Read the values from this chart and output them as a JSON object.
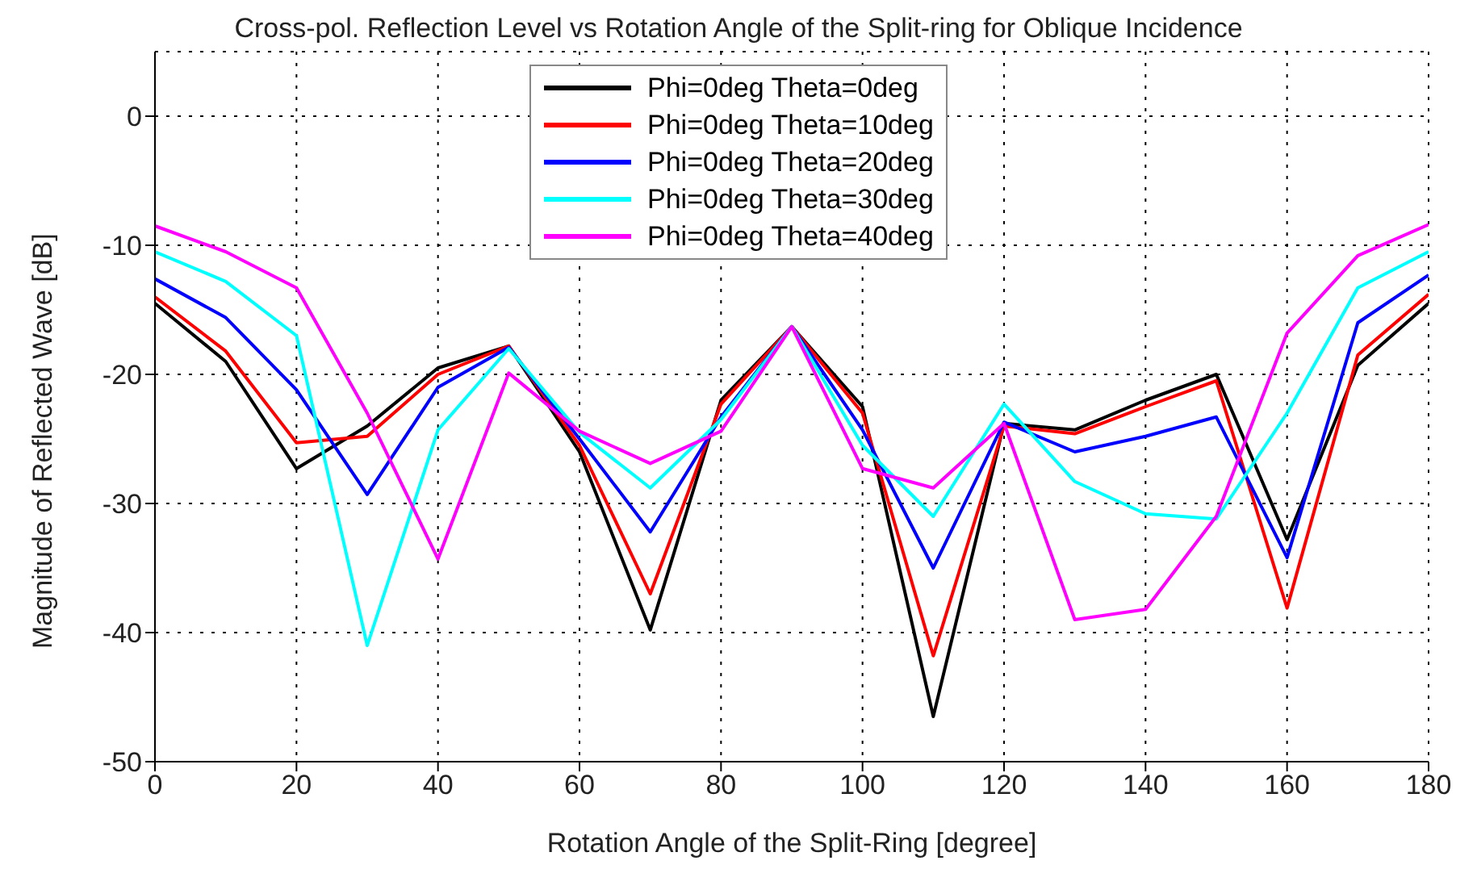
{
  "chart_data": {
    "type": "line",
    "title": "Cross-pol. Reflection Level vs Rotation Angle of the Split-ring for Oblique Incidence",
    "xlabel": "Rotation Angle of the Split-Ring [degree]",
    "ylabel": "Magnitude of Reflected Wave [dB]",
    "x": [
      0,
      10,
      20,
      30,
      40,
      50,
      60,
      70,
      80,
      90,
      100,
      110,
      120,
      130,
      140,
      150,
      160,
      170,
      180
    ],
    "series": [
      {
        "name": "Phi=0deg Theta=0deg",
        "color": "#000000",
        "values": [
          -14.5,
          -19,
          -27.3,
          -24,
          -19.5,
          -17.8,
          -26,
          -39.8,
          -22,
          -16.3,
          -22.5,
          -46.5,
          -23.8,
          -24.3,
          -22,
          -20,
          -32.8,
          -19.3,
          -14.5
        ]
      },
      {
        "name": "Phi=0deg Theta=10deg",
        "color": "#ff0000",
        "values": [
          -14,
          -18.2,
          -25.3,
          -24.8,
          -20,
          -17.8,
          -25.5,
          -37,
          -22.3,
          -16.3,
          -23,
          -41.8,
          -24,
          -24.6,
          -22.5,
          -20.5,
          -38.1,
          -18.5,
          -13.8
        ]
      },
      {
        "name": "Phi=0deg Theta=20deg",
        "color": "#0000ff",
        "values": [
          -12.6,
          -15.6,
          -21.2,
          -29.3,
          -21,
          -17.9,
          -25,
          -32.2,
          -23.3,
          -16.3,
          -24.3,
          -35,
          -23.7,
          -26,
          -24.8,
          -23.3,
          -34.2,
          -16,
          -12.3
        ]
      },
      {
        "name": "Phi=0deg Theta=30deg",
        "color": "#00ffff",
        "values": [
          -10.5,
          -12.8,
          -17,
          -41,
          -24.3,
          -18,
          -24.5,
          -28.8,
          -23.5,
          -16.3,
          -25.5,
          -31,
          -22.3,
          -28.3,
          -30.8,
          -31.2,
          -23,
          -13.3,
          -10.5
        ]
      },
      {
        "name": "Phi=0deg Theta=40deg",
        "color": "#ff00ff",
        "values": [
          -8.5,
          -10.5,
          -13.3,
          -23,
          -34.3,
          -19.9,
          -24.4,
          -26.9,
          -24.4,
          -16.3,
          -27.3,
          -28.8,
          -23.8,
          -39,
          -38.2,
          -31,
          -16.8,
          -10.8,
          -8.4
        ]
      }
    ],
    "xlim": [
      0,
      180
    ],
    "xticks": [
      0,
      20,
      40,
      60,
      80,
      100,
      120,
      140,
      160,
      180
    ],
    "ylim": [
      -50,
      5
    ],
    "yticks": [
      -50,
      -40,
      -30,
      -20,
      -10,
      0
    ],
    "grid": true,
    "legend": "top",
    "marker": "none",
    "line_style": "solid"
  }
}
